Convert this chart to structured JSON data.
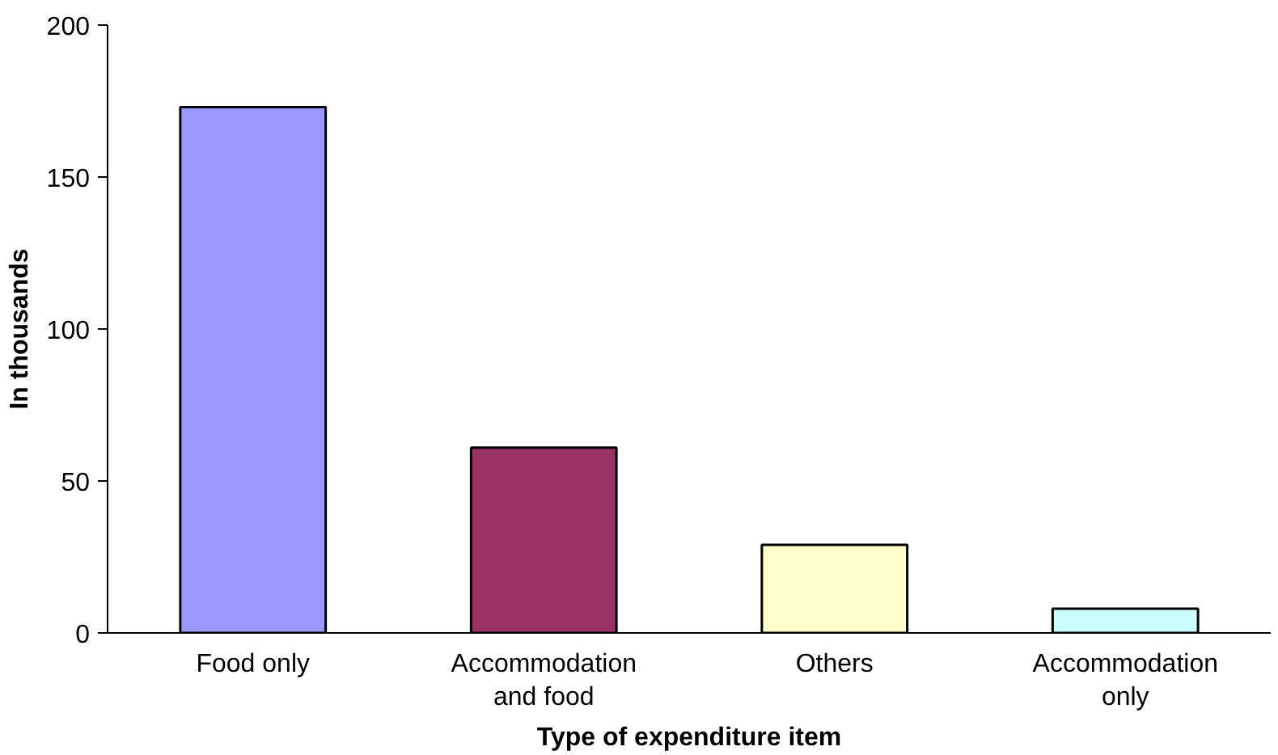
{
  "chart_data": {
    "type": "bar",
    "xlabel": "Type of expenditure item",
    "ylabel": "In thousands",
    "categories": [
      "Food only",
      "Accommodation and food",
      "Others",
      "Accommodation only"
    ],
    "values": [
      173,
      61,
      29,
      8
    ],
    "colors": [
      "#9999ff",
      "#993366",
      "#ffffcc",
      "#ccffff"
    ],
    "ylim": [
      0,
      200
    ],
    "yticks": [
      0,
      50,
      100,
      150,
      200
    ],
    "grid": false
  }
}
